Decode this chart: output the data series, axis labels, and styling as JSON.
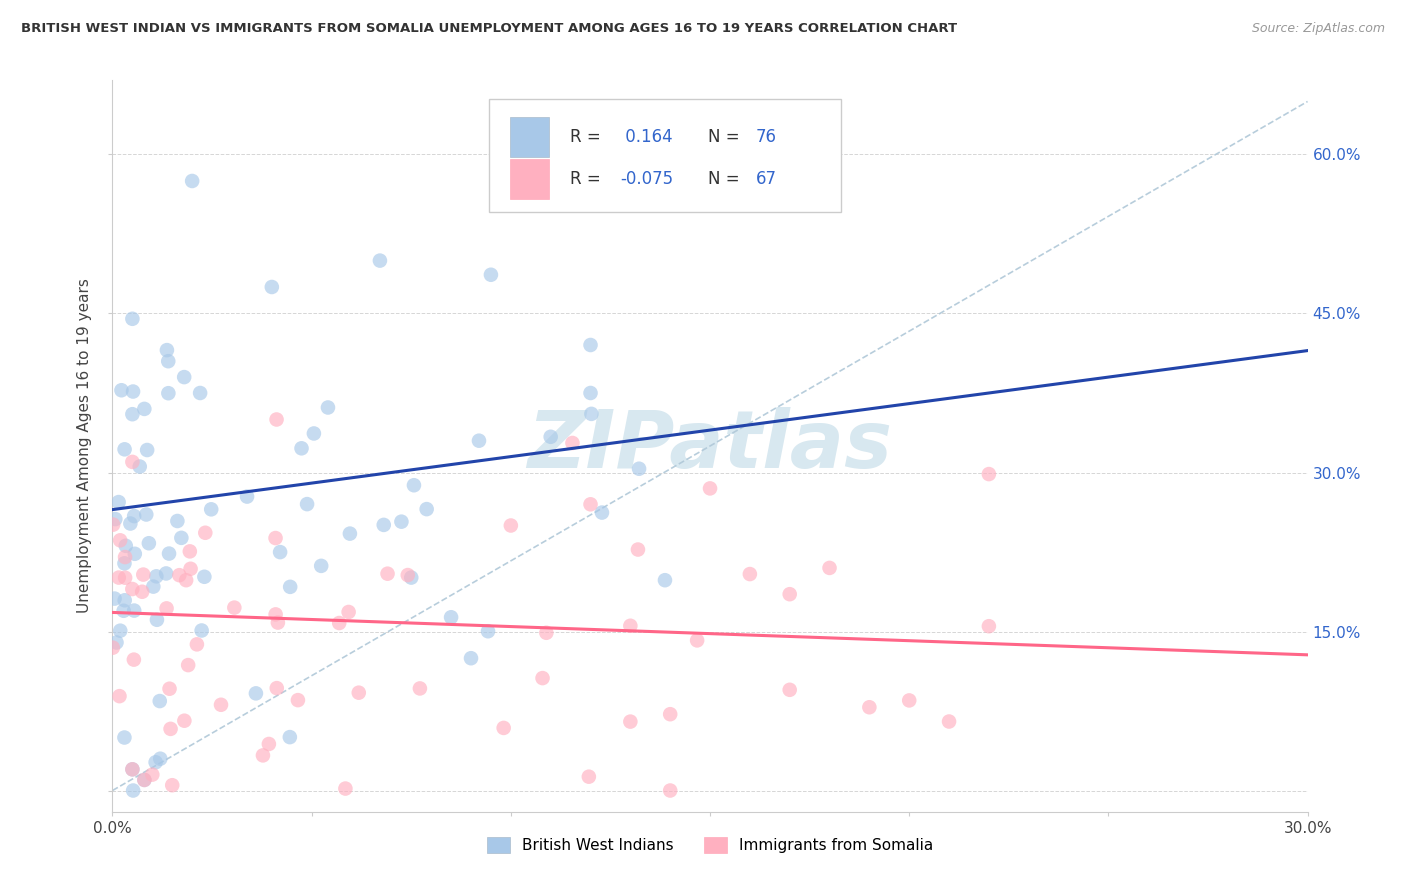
{
  "title": "BRITISH WEST INDIAN VS IMMIGRANTS FROM SOMALIA UNEMPLOYMENT AMONG AGES 16 TO 19 YEARS CORRELATION CHART",
  "source": "Source: ZipAtlas.com",
  "ylabel": "Unemployment Among Ages 16 to 19 years",
  "xlim": [
    0.0,
    0.3
  ],
  "ylim": [
    -0.02,
    0.67
  ],
  "right_ytick_vals": [
    0.0,
    0.15,
    0.3,
    0.45,
    0.6
  ],
  "right_yticklabels": [
    "",
    "15.0%",
    "30.0%",
    "45.0%",
    "60.0%"
  ],
  "label1": "British West Indians",
  "label2": "Immigrants from Somalia",
  "color1": "#A8C8E8",
  "color2": "#FFB0C0",
  "trend1_color": "#2244AA",
  "trend2_color": "#FF6688",
  "ref_line_color": "#B0C8D8",
  "watermark_color": "#D8E8F0",
  "seed": 42,
  "N1": 76,
  "N2": 67,
  "trend1_x0": 0.0,
  "trend1_y0": 0.265,
  "trend1_x1": 0.1,
  "trend1_y1": 0.315,
  "trend2_x0": 0.0,
  "trend2_y0": 0.168,
  "trend2_x1": 0.3,
  "trend2_y1": 0.128
}
